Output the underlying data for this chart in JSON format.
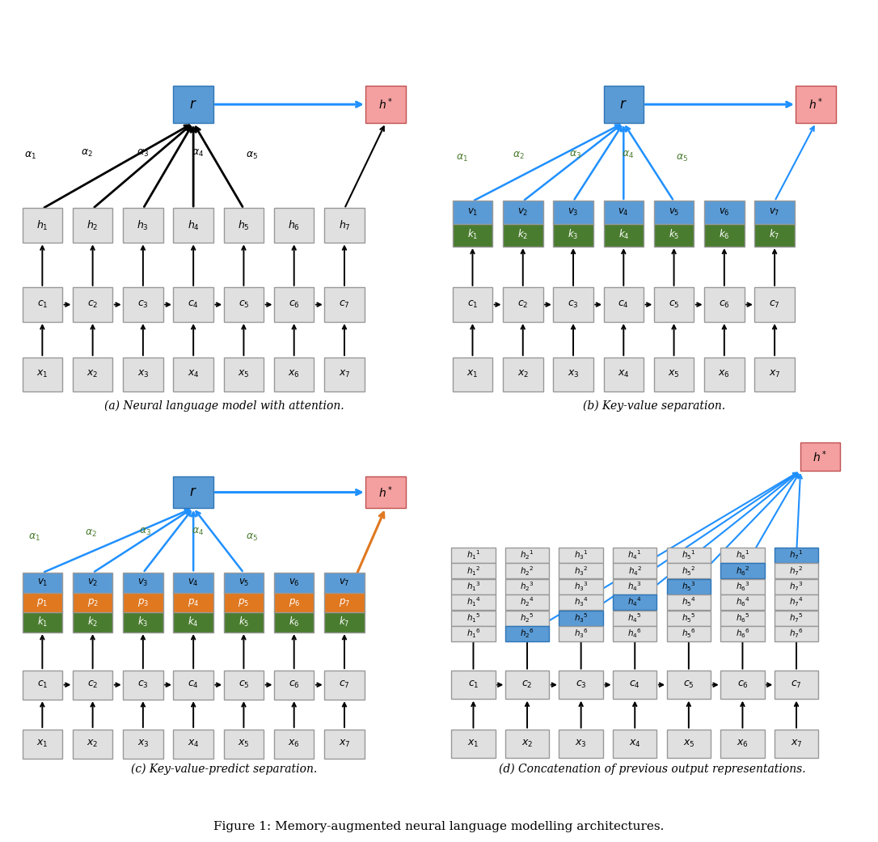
{
  "fig_width": 10.86,
  "fig_height": 10.41,
  "colors": {
    "gray_box": "#e0e0e0",
    "gray_border": "#999999",
    "blue_box": "#5b9bd5",
    "blue_border": "#2e75b6",
    "red_box": "#f4a0a0",
    "red_border": "#c05050",
    "green_box": "#4a7c2f",
    "green_text": "#4a7c2f",
    "orange_box": "#e07820",
    "black": "#000000",
    "blue_arrow": "#2090ff",
    "orange_arrow": "#e07820"
  },
  "caption_a": "(a) Neural language model with attention.",
  "caption_b": "(b) Key-value separation.",
  "caption_c": "(c) Key-value-predict separation.",
  "caption_d": "(d) Concatenation of previous output representations.",
  "figure_caption": "Figure 1: Memory-augmented neural language modelling architectures."
}
